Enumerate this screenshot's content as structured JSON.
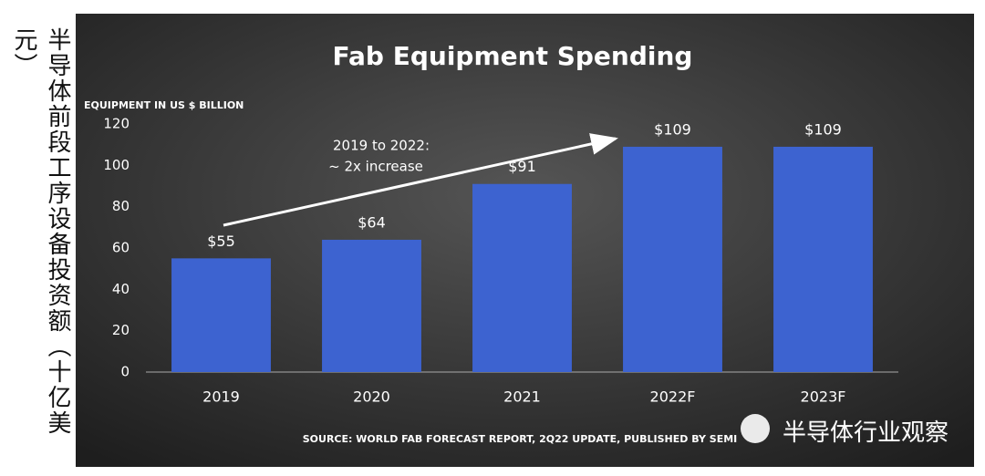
{
  "side_label": "半导体前段工序设备投资额（十亿美元）",
  "watermark": "半导体行业观察",
  "chart_data": {
    "type": "bar",
    "title": "Fab Equipment Spending",
    "y_axis_label": "EQUIPMENT IN US $ BILLION",
    "categories": [
      "2019",
      "2020",
      "2021",
      "2022F",
      "2023F"
    ],
    "values": [
      55,
      64,
      91,
      109,
      109
    ],
    "value_labels": [
      "$55",
      "$64",
      "$91",
      "$109",
      "$109"
    ],
    "color": "#3d63d0",
    "ylim": [
      0,
      120
    ],
    "yticks": [
      0,
      20,
      40,
      60,
      80,
      100,
      120
    ],
    "grid": false,
    "annotation": [
      "2019 to 2022:",
      "~ 2x increase"
    ],
    "source": "SOURCE: WORLD FAB FORECAST REPORT, 2Q22 UPDATE, PUBLISHED BY SEMI"
  }
}
